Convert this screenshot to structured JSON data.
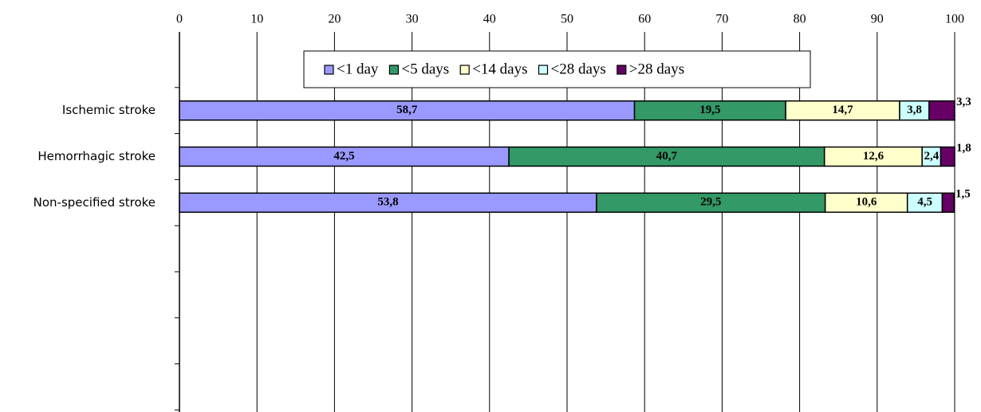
{
  "chart_data": {
    "type": "stacked-bar-horizontal",
    "categories": [
      "Ischemic stroke",
      "Hemorrhagic stroke",
      "Non-specified stroke"
    ],
    "series": [
      {
        "name": "<1 day",
        "color": "#9999ff",
        "values": [
          58.7,
          42.5,
          53.8
        ],
        "value_labels": [
          "58,7",
          "42,5",
          "53,8"
        ]
      },
      {
        "name": "<5 days",
        "color": "#339966",
        "values": [
          19.5,
          40.7,
          29.5
        ],
        "value_labels": [
          "19,5",
          "40,7",
          "29,5"
        ]
      },
      {
        "name": "<14 days",
        "color": "#ffffcc",
        "values": [
          14.7,
          12.6,
          10.6
        ],
        "value_labels": [
          "14,7",
          "12,6",
          "10,6"
        ]
      },
      {
        "name": "<28 days",
        "color": "#ccffff",
        "values": [
          3.8,
          2.4,
          4.5
        ],
        "value_labels": [
          "3,8",
          "2,4",
          "4,5"
        ]
      },
      {
        "name": ">28 days",
        "color": "#660066",
        "values": [
          3.3,
          1.8,
          1.5
        ],
        "value_labels": [
          "3,3",
          "1,8",
          "1,5"
        ]
      }
    ],
    "xlim": [
      0,
      100
    ],
    "xticks": [
      0,
      10,
      20,
      30,
      40,
      50,
      60,
      70,
      80,
      90,
      100
    ],
    "grid": true
  }
}
